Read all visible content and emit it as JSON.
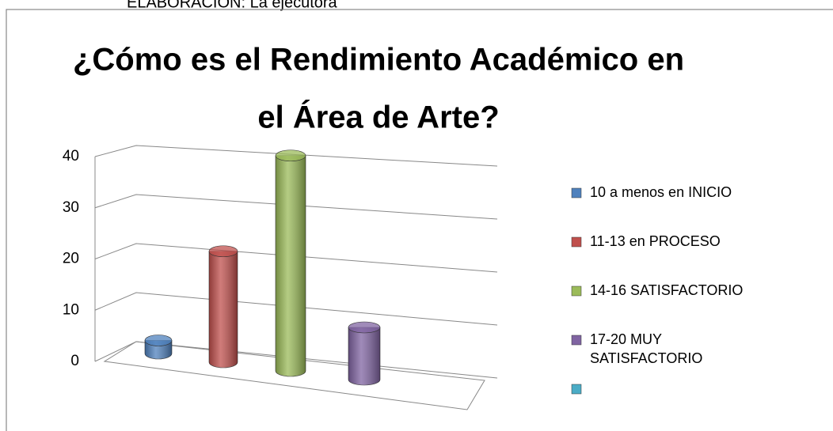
{
  "chart_data": {
    "type": "bar3d",
    "caption": "ELABORACION: La ejecutora",
    "title_lines": [
      "¿Cómo es el Rendimiento Académico en",
      "el Área de  Arte?"
    ],
    "series": [
      {
        "name": "10 a menos en INICIO",
        "color": "#4f81bd",
        "values": [
          2
        ]
      },
      {
        "name": "11-13 en PROCESO",
        "color": "#c0504d",
        "values": [
          17
        ]
      },
      {
        "name": "14-16 SATISFACTORIO",
        "color": "#9bbb59",
        "values": [
          33
        ]
      },
      {
        "name": "17-20 MUY SATISFACTORIO",
        "color": "#8064a2",
        "values": [
          8
        ]
      },
      {
        "name": null,
        "color": "#4bacc6",
        "values": [
          null
        ]
      }
    ],
    "ylim": [
      0,
      40
    ],
    "yticks": [
      0,
      10,
      20,
      30,
      40
    ],
    "grid": true,
    "legend": "right"
  }
}
